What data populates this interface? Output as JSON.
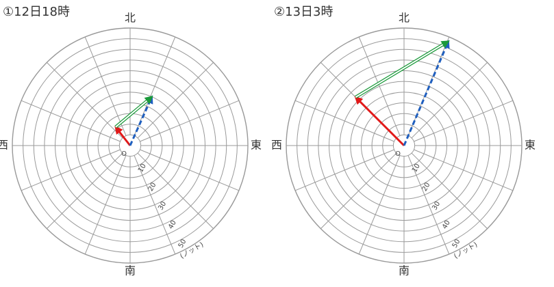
{
  "diagrams": [
    {
      "title": "①12日18時",
      "directions": {
        "north": "北",
        "east": "東",
        "south": "南",
        "west": "西"
      },
      "origin_label": "O",
      "ring_step": 5,
      "max": 55,
      "ring_labels": [
        10,
        20,
        30,
        40,
        50
      ],
      "unit": "(ノット)",
      "vectors": [
        {
          "color": "#e11919",
          "style": "solid",
          "speed": 11,
          "direction": 322
        },
        {
          "color": "#1f5fbf",
          "style": "dashed",
          "speed": 25,
          "direction": 24
        }
      ],
      "difference_color": "#1a9a3a"
    },
    {
      "title": "②13日3時",
      "directions": {
        "north": "北",
        "east": "東",
        "south": "南",
        "west": "西"
      },
      "origin_label": "O",
      "ring_step": 5,
      "max": 55,
      "ring_labels": [
        10,
        20,
        30,
        40,
        50
      ],
      "unit": "(ノット)",
      "vectors": [
        {
          "color": "#e11919",
          "style": "solid",
          "speed": 32,
          "direction": 315
        },
        {
          "color": "#1f5fbf",
          "style": "dashed",
          "speed": 53,
          "direction": 23
        }
      ],
      "difference_color": "#1a9a3a"
    }
  ]
}
